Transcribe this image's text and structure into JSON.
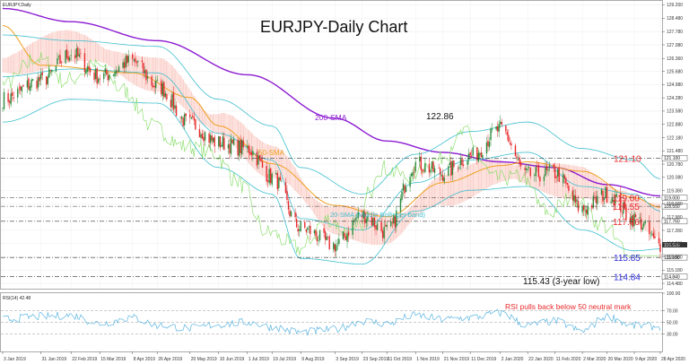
{
  "chart_data": [
    {
      "type": "candlestick",
      "panel": "price",
      "title": "EURJPY-Daily Chart",
      "legend_label": "EURJPY,Daily",
      "ylim": [
        114.2,
        129.4
      ],
      "y_ticks": [
        "129.200",
        "128.480",
        "127.780",
        "127.080",
        "126.360",
        "125.680",
        "124.980",
        "124.280",
        "123.580",
        "122.880",
        "122.180",
        "121.480",
        "120.780",
        "120.080",
        "119.380",
        "118.680",
        "117.980",
        "117.280",
        "116.580",
        "115.880",
        "115.180",
        "114.480"
      ],
      "x_ticks": [
        "3 Jan 2019",
        "31 Jan 2019",
        "22 Feb 2019",
        "15 Mar 2019",
        "8 Apr 2019",
        "26 Apr 2019",
        "20 May 2019",
        "10 Jun 2019",
        "1 Jul 2019",
        "19 Jul 2019",
        "9 Aug 2019",
        "3 Sep 2019",
        "23 Sep 2019",
        "11 Oct 2019",
        "1 Nov 2019",
        "21 Nov 2019",
        "11 Dec 2019",
        "2 Jan 2020",
        "22 Jan 2020",
        "11 Feb 2020",
        "2 Mar 2020",
        "20 Mar 2020",
        "9 Apr 2020",
        "28 Apr 2020"
      ],
      "levels": [
        {
          "value": 121.1,
          "label": "121.10",
          "tag": "121.100",
          "color": "#e8292b"
        },
        {
          "value": 119.0,
          "label": "119.00",
          "tag": "119.000",
          "color": "#e8292b"
        },
        {
          "value": 118.55,
          "label": "118.55",
          "tag": "118.550",
          "color": "#e8292b"
        },
        {
          "value": 117.76,
          "label": "117.76",
          "tag": "117.760",
          "color": "#e8292b"
        },
        {
          "value": 115.85,
          "label": "115.85",
          "tag": "115.850",
          "color": "#2b2bd6"
        },
        {
          "value": 114.84,
          "label": "114.84",
          "tag": "114.840",
          "color": "#2b2bd6"
        }
      ],
      "current_price_tag": "116.520",
      "annotations": [
        {
          "text": "122.86",
          "x": "24 Dec 2019",
          "y": 122.86,
          "color": "#111111"
        },
        {
          "text": "115.43 (3-year low)",
          "x": "22 Apr 2020",
          "y": 115.43,
          "color": "#111111"
        },
        {
          "text": "200-SMA",
          "x": "Nov 2019",
          "y": 122.9,
          "color": "#8c1cd1"
        },
        {
          "text": "50-SMA",
          "x": "Jul 2019",
          "y": 120.7,
          "color": "#f0a020"
        },
        {
          "text": "20-SMA (Middle Bollinger band)",
          "x": "Oct 2019",
          "y": 117.9,
          "color": "#3fbfcf"
        }
      ],
      "series": [
        {
          "kind": "EURJPY daily candles",
          "up_color": "#2a8c3c",
          "down_color": "#e8292b",
          "keypoints": [
            [
              "3 Jan 2019",
              124.2
            ],
            [
              "31 Jan 2019",
              125.2
            ],
            [
              "22 Feb 2019",
              126.6
            ],
            [
              "15 Mar 2019",
              125.4
            ],
            [
              "8 Apr 2019",
              126.2
            ],
            [
              "26 Apr 2019",
              124.9
            ],
            [
              "20 May 2019",
              122.9
            ],
            [
              "10 Jun 2019",
              121.9
            ],
            [
              "1 Jul 2019",
              121.6
            ],
            [
              "19 Jul 2019",
              120.1
            ],
            [
              "9 Aug 2019",
              117.4
            ],
            [
              "3 Sep 2019",
              116.5
            ],
            [
              "23 Sep 2019",
              118.1
            ],
            [
              "11 Oct 2019",
              117.2
            ],
            [
              "1 Nov 2019",
              120.8
            ],
            [
              "21 Nov 2019",
              120.3
            ],
            [
              "11 Dec 2019",
              121.2
            ],
            [
              "2 Jan 2020",
              122.6
            ],
            [
              "22 Jan 2020",
              120.2
            ],
            [
              "11 Feb 2020",
              120.3
            ],
            [
              "2 Mar 2020",
              118.4
            ],
            [
              "20 Mar 2020",
              119.2
            ],
            [
              "9 Apr 2020",
              117.9
            ],
            [
              "28 Apr 2020",
              116.5
            ]
          ]
        },
        {
          "kind": "200-SMA",
          "color": "#8c1cd1",
          "keypoints": [
            [
              "3 Jan 2019",
              129.0
            ],
            [
              "22 Feb 2019",
              128.3
            ],
            [
              "26 Apr 2019",
              127.3
            ],
            [
              "1 Jul 2019",
              125.5
            ],
            [
              "3 Sep 2019",
              123.2
            ],
            [
              "11 Oct 2019",
              122.0
            ],
            [
              "21 Nov 2019",
              121.4
            ],
            [
              "2 Jan 2020",
              120.9
            ],
            [
              "11 Feb 2020",
              120.6
            ],
            [
              "20 Mar 2020",
              119.7
            ],
            [
              "28 Apr 2020",
              119.1
            ]
          ]
        },
        {
          "kind": "50-SMA",
          "color": "#f0a020",
          "keypoints": [
            [
              "3 Jan 2019",
              128.1
            ],
            [
              "31 Jan 2019",
              126.0
            ],
            [
              "8 Apr 2019",
              125.6
            ],
            [
              "20 May 2019",
              124.3
            ],
            [
              "10 Jun 2019",
              122.8
            ],
            [
              "19 Jul 2019",
              120.8
            ],
            [
              "3 Sep 2019",
              118.6
            ],
            [
              "11 Oct 2019",
              118.0
            ],
            [
              "21 Nov 2019",
              119.8
            ],
            [
              "2 Jan 2020",
              120.7
            ],
            [
              "22 Jan 2020",
              120.9
            ],
            [
              "2 Mar 2020",
              120.4
            ],
            [
              "9 Apr 2020",
              119.0
            ],
            [
              "28 Apr 2020",
              118.5
            ]
          ]
        },
        {
          "kind": "20-SMA (Middle Bollinger band)",
          "color": "#3fbfcf",
          "keypoints": [
            [
              "3 Jan 2019",
              125.4
            ],
            [
              "22 Feb 2019",
              125.8
            ],
            [
              "26 Apr 2019",
              125.6
            ],
            [
              "10 Jun 2019",
              122.4
            ],
            [
              "19 Jul 2019",
              121.0
            ],
            [
              "9 Aug 2019",
              117.9
            ],
            [
              "23 Sep 2019",
              117.3
            ],
            [
              "1 Nov 2019",
              119.8
            ],
            [
              "11 Dec 2019",
              121.0
            ],
            [
              "22 Jan 2020",
              121.4
            ],
            [
              "2 Mar 2020",
              119.6
            ],
            [
              "9 Apr 2020",
              119.2
            ],
            [
              "28 Apr 2020",
              118.3
            ]
          ]
        },
        {
          "kind": "Upper Bollinger band",
          "color": "#3fbfcf",
          "keypoints": [
            [
              "3 Jan 2019",
              127.6
            ],
            [
              "22 Feb 2019",
              127.3
            ],
            [
              "26 Apr 2019",
              127.0
            ],
            [
              "10 Jun 2019",
              124.2
            ],
            [
              "19 Jul 2019",
              122.8
            ],
            [
              "9 Aug 2019",
              120.6
            ],
            [
              "23 Sep 2019",
              119.2
            ],
            [
              "1 Nov 2019",
              121.3
            ],
            [
              "11 Dec 2019",
              122.5
            ],
            [
              "22 Jan 2020",
              123.0
            ],
            [
              "2 Mar 2020",
              121.6
            ],
            [
              "9 Apr 2020",
              121.0
            ],
            [
              "28 Apr 2020",
              120.0
            ]
          ]
        },
        {
          "kind": "Lower Bollinger band",
          "color": "#3fbfcf",
          "keypoints": [
            [
              "3 Jan 2019",
              123.0
            ],
            [
              "22 Feb 2019",
              124.2
            ],
            [
              "26 Apr 2019",
              124.0
            ],
            [
              "10 Jun 2019",
              120.6
            ],
            [
              "19 Jul 2019",
              119.2
            ],
            [
              "9 Aug 2019",
              115.8
            ],
            [
              "23 Sep 2019",
              115.5
            ],
            [
              "1 Nov 2019",
              118.3
            ],
            [
              "11 Dec 2019",
              119.4
            ],
            [
              "22 Jan 2020",
              119.6
            ],
            [
              "2 Mar 2020",
              117.3
            ],
            [
              "9 Apr 2020",
              116.2
            ],
            [
              "28 Apr 2020",
              116.3
            ]
          ]
        },
        {
          "kind": "Ichimoku cloud",
          "color": "#f08a80",
          "keypoints": [
            [
              "3 Jan 2019",
              126.0
            ],
            [
              "22 Feb 2019",
              127.0
            ],
            [
              "26 Apr 2019",
              125.5
            ],
            [
              "10 Jun 2019",
              122.9
            ],
            [
              "19 Jul 2019",
              120.9
            ],
            [
              "3 Sep 2019",
              117.8
            ],
            [
              "11 Oct 2019",
              117.3
            ],
            [
              "21 Nov 2019",
              119.4
            ],
            [
              "2 Jan 2020",
              120.4
            ],
            [
              "2 Mar 2020",
              119.8
            ],
            [
              "20 Mar 2020",
              119.2
            ],
            [
              "28 Apr 2020",
              117.8
            ]
          ]
        }
      ]
    },
    {
      "type": "line",
      "panel": "indicator",
      "name": "RSI(14) 42.48",
      "ylim": [
        0,
        100
      ],
      "y_ticks": [
        "100.00",
        "70.00",
        "50.00",
        "30.00"
      ],
      "reference_lines": [
        70,
        50,
        30
      ],
      "annotation": {
        "text": "RSI pulls back below 50 neutral mark",
        "color": "#e8292b"
      },
      "color": "#5ab4e0",
      "keypoints": [
        [
          "3 Jan 2019",
          55
        ],
        [
          "31 Jan 2019",
          60
        ],
        [
          "22 Feb 2019",
          62
        ],
        [
          "15 Mar 2019",
          48
        ],
        [
          "8 Apr 2019",
          58
        ],
        [
          "26 Apr 2019",
          45
        ],
        [
          "20 May 2019",
          40
        ],
        [
          "10 Jun 2019",
          46
        ],
        [
          "1 Jul 2019",
          50
        ],
        [
          "19 Jul 2019",
          42
        ],
        [
          "9 Aug 2019",
          33
        ],
        [
          "3 Sep 2019",
          38
        ],
        [
          "23 Sep 2019",
          52
        ],
        [
          "11 Oct 2019",
          48
        ],
        [
          "1 Nov 2019",
          62
        ],
        [
          "21 Nov 2019",
          55
        ],
        [
          "11 Dec 2019",
          58
        ],
        [
          "2 Jan 2020",
          66
        ],
        [
          "22 Jan 2020",
          45
        ],
        [
          "11 Feb 2020",
          52
        ],
        [
          "2 Mar 2020",
          35
        ],
        [
          "20 Mar 2020",
          60
        ],
        [
          "9 Apr 2020",
          44
        ],
        [
          "28 Apr 2020",
          42.48
        ]
      ]
    }
  ]
}
